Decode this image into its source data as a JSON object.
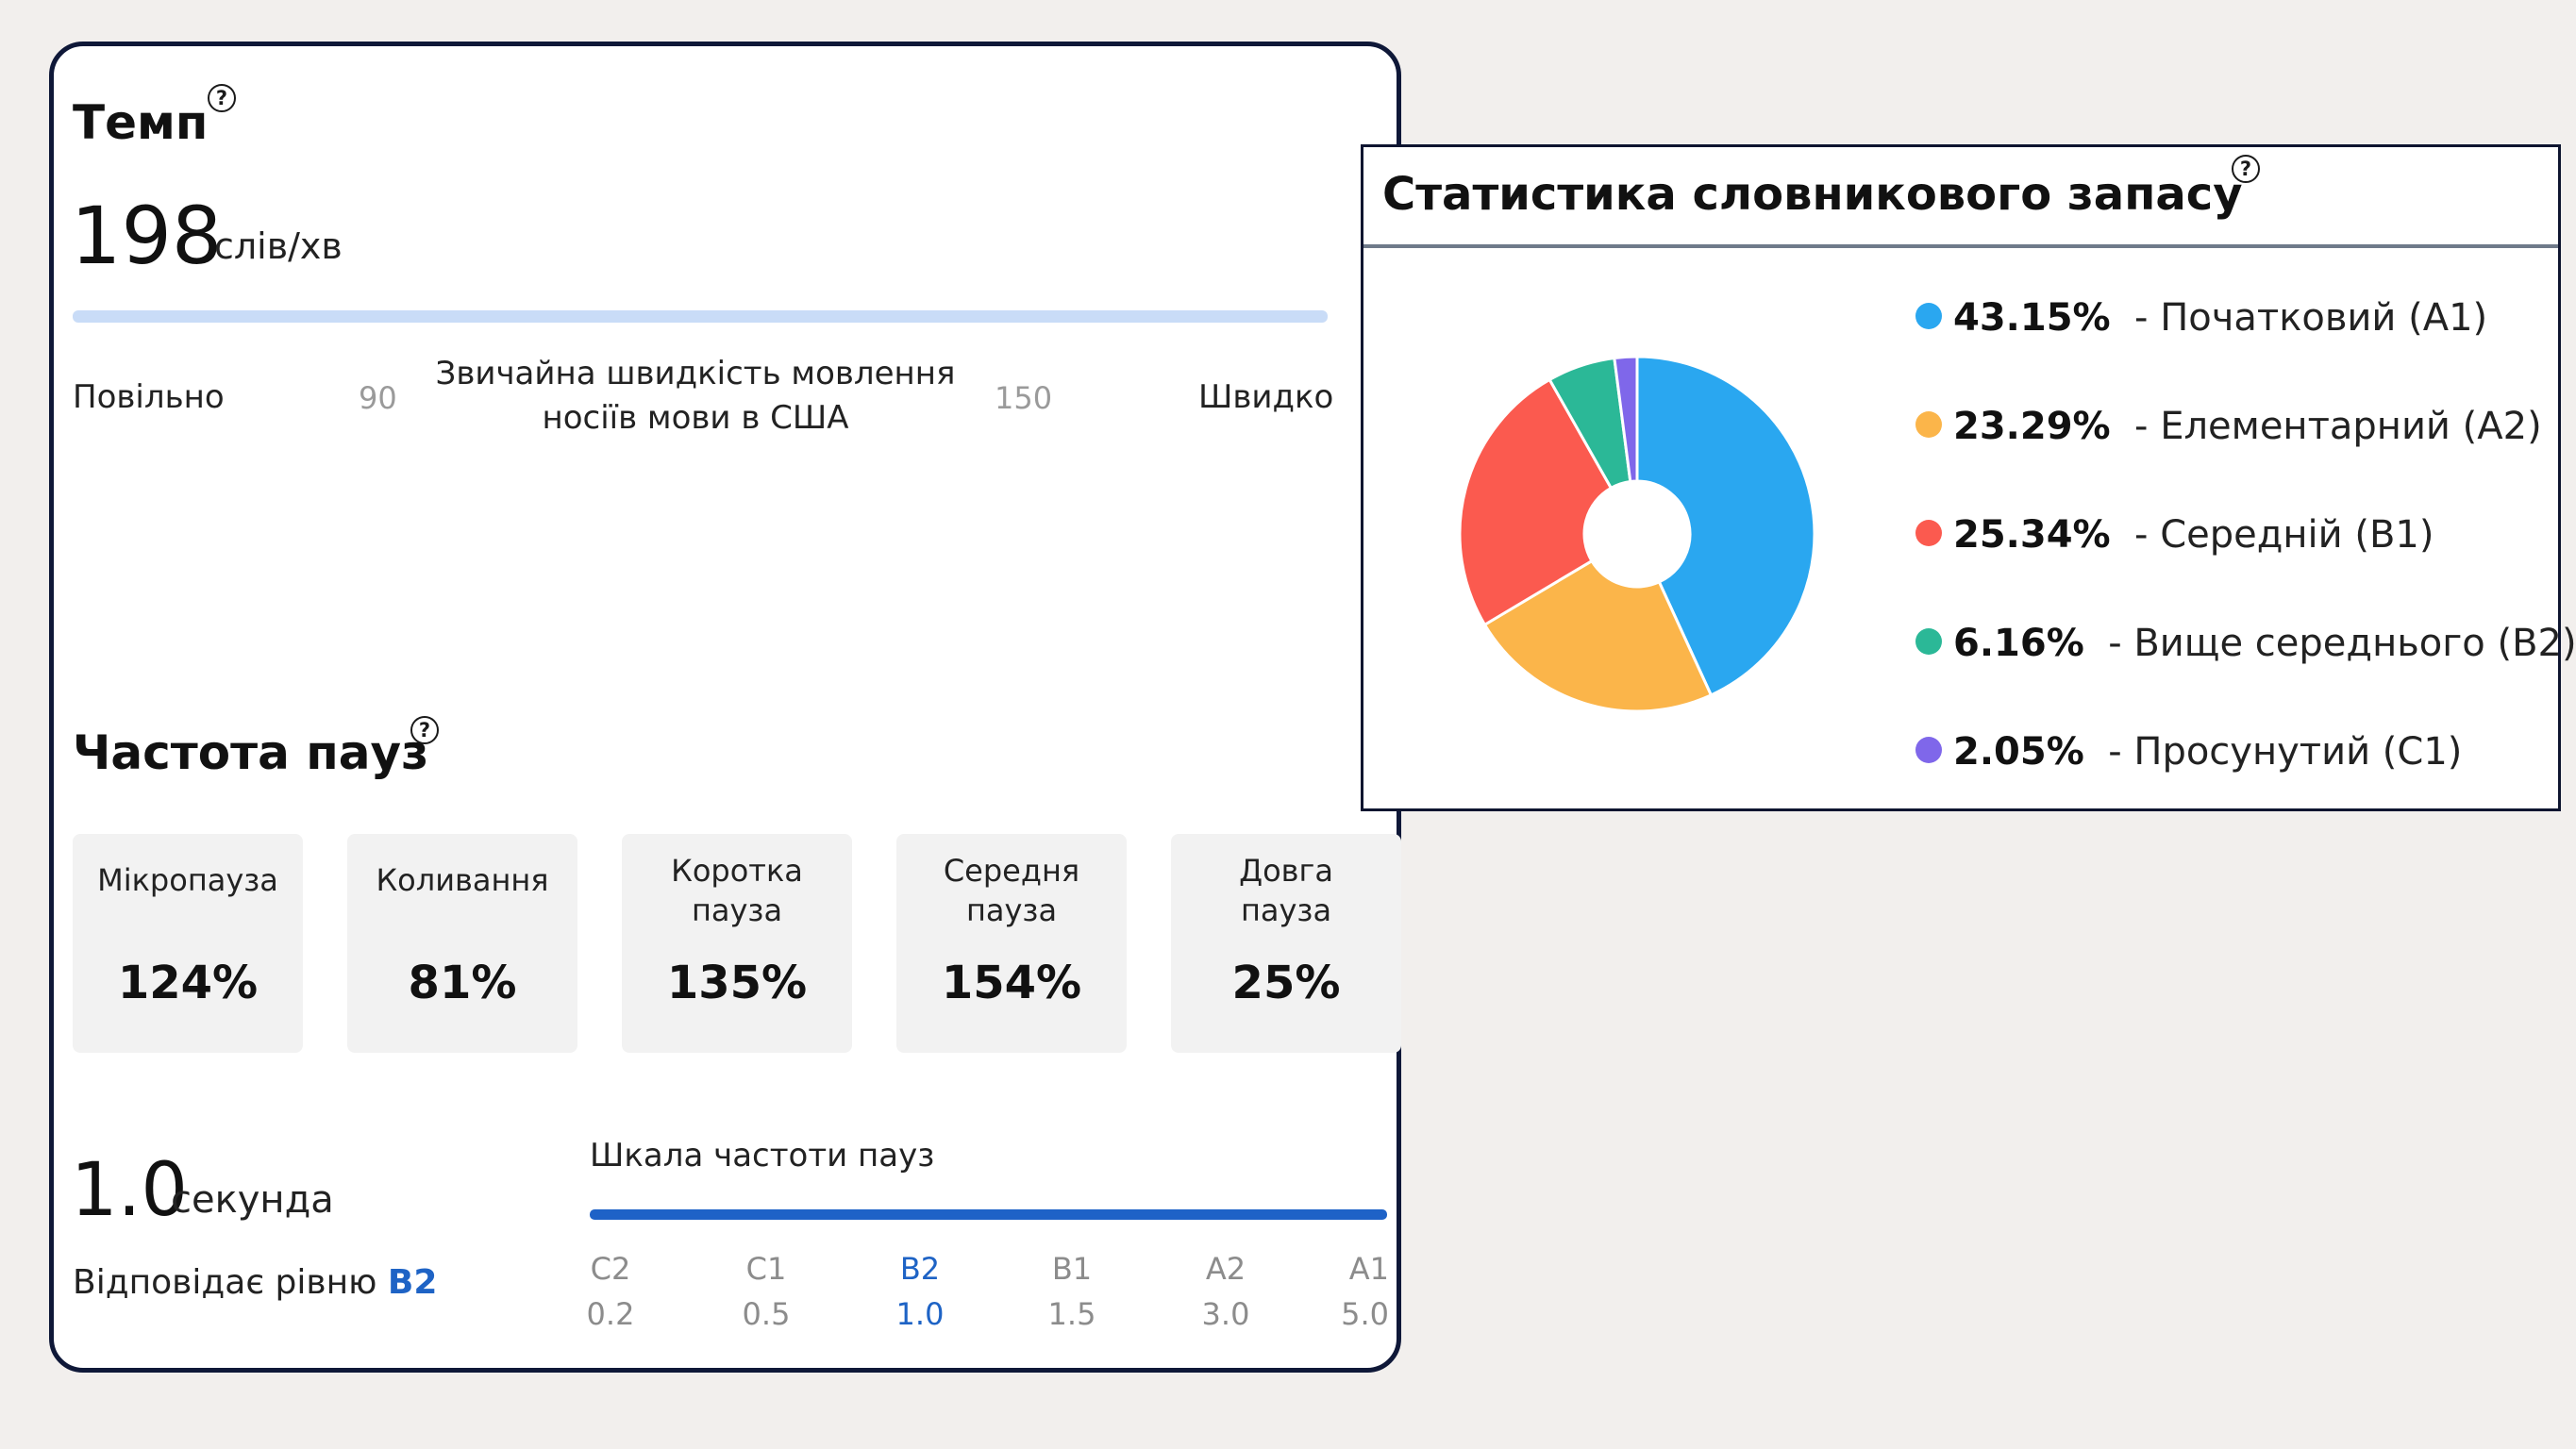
{
  "tempo": {
    "title": "Темп",
    "value": "198",
    "unit": "слів/хв",
    "scale": {
      "slow_label": "Повільно",
      "min_value": "90",
      "middle_label": "Звичайна швидкість мовлення носіїв мови в США",
      "max_value": "150",
      "fast_label": "Швидко"
    }
  },
  "pause_frequency": {
    "title": "Частота пауз",
    "boxes": [
      {
        "label": "Мікропауза",
        "value": "124%"
      },
      {
        "label": "Коливання",
        "value": "81%"
      },
      {
        "label": "Коротка пауза",
        "value": "135%"
      },
      {
        "label": "Середня пауза",
        "value": "154%"
      },
      {
        "label": "Довга пауза",
        "value": "25%"
      }
    ],
    "seconds_value": "1.0",
    "seconds_unit": "секунда",
    "level_prefix": "Відповідає рівню",
    "level_code": "B2",
    "scale_title": "Шкала частоти пауз",
    "scale": [
      {
        "level": "C2",
        "value": "0.2"
      },
      {
        "level": "C1",
        "value": "0.5"
      },
      {
        "level": "B2",
        "value": "1.0"
      },
      {
        "level": "B1",
        "value": "1.5"
      },
      {
        "level": "A2",
        "value": "3.0"
      },
      {
        "level": "A1",
        "value": "5.0"
      }
    ],
    "active_level": "B2",
    "colors": {
      "accent": "#1e63c5",
      "bar": "#1e62c7"
    }
  },
  "vocabulary": {
    "title": "Статистика словникового запасу",
    "legend": [
      {
        "percent": "43.15%",
        "label": "- Початковий (A1)",
        "color": "#2aa7f0"
      },
      {
        "percent": "23.29%",
        "label": "- Елементарний (A2)",
        "color": "#fbb54a"
      },
      {
        "percent": "25.34%",
        "label": "- Середній (B1)",
        "color": "#fb5a4f"
      },
      {
        "percent": "6.16%",
        "label": "- Вище середнього (B2)",
        "color": "#2bb897"
      },
      {
        "percent": "2.05%",
        "label": "- Просунутий (C1)",
        "color": "#7f67ea"
      }
    ]
  },
  "chart_data": {
    "type": "pie",
    "title": "Статистика словникового запасу",
    "categories": [
      "Початковий (A1)",
      "Елементарний (A2)",
      "Середній (B1)",
      "Вище середнього (B2)",
      "Просунутий (C1)"
    ],
    "values": [
      43.15,
      23.29,
      25.34,
      6.16,
      2.05
    ],
    "colors": [
      "#2aa7f0",
      "#fbb54a",
      "#fb5a4f",
      "#2bb897",
      "#7f67ea"
    ],
    "donut": true,
    "legend": "right"
  }
}
